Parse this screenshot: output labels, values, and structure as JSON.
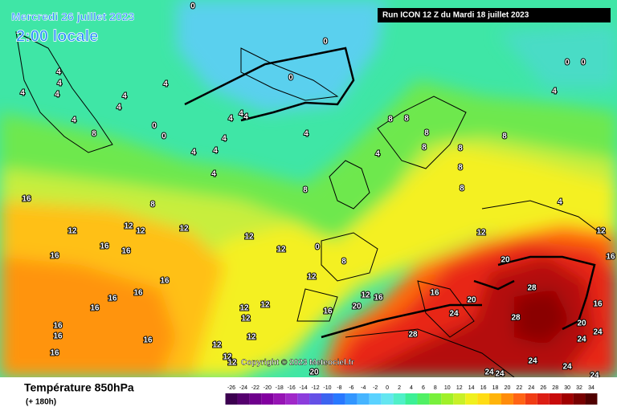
{
  "header": {
    "date": "Mercredi 26 juillet 2023",
    "time": "2:00 locale",
    "run": "Run ICON 12 Z du Mardi 18 juillet 2023",
    "copyright": "Copyright © 2023 Meteociel.fr"
  },
  "legend": {
    "title": "Température 850hPa",
    "lead_time": "(+ 180h)",
    "scale_values": [
      -26,
      -24,
      -22,
      -20,
      -18,
      -16,
      -14,
      -12,
      -10,
      -8,
      -6,
      -4,
      -2,
      0,
      2,
      4,
      6,
      8,
      10,
      12,
      14,
      16,
      18,
      20,
      22,
      24,
      26,
      28,
      30,
      32,
      34
    ]
  },
  "contour_labels": [
    0,
    0,
    0,
    0,
    0,
    0,
    0,
    0,
    4,
    4,
    4,
    4,
    4,
    4,
    4,
    4,
    4,
    4,
    4,
    4,
    4,
    4,
    4,
    4,
    4,
    4,
    4,
    8,
    8,
    8,
    8,
    8,
    8,
    8,
    8,
    8,
    8,
    8,
    8,
    12,
    12,
    12,
    12,
    12,
    12,
    12,
    12,
    12,
    12,
    12,
    12,
    12,
    12,
    12,
    12,
    12,
    16,
    16,
    16,
    16,
    16,
    16,
    16,
    16,
    16,
    16,
    16,
    16,
    16,
    16,
    16,
    16,
    16,
    20,
    20,
    20,
    20,
    20,
    24,
    24,
    24,
    24,
    24,
    24,
    24,
    24,
    28,
    28,
    28
  ]
}
